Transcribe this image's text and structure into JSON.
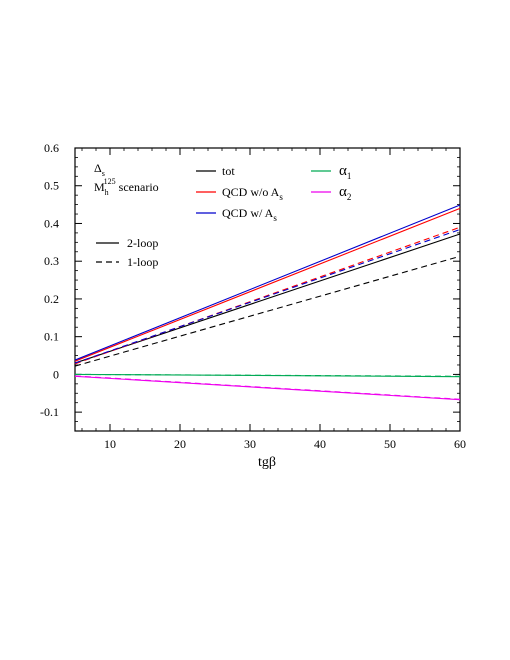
{
  "chart_data": {
    "type": "line",
    "title": "",
    "xlabel": "tgβ",
    "ylabel": "",
    "xlim": [
      5,
      60
    ],
    "ylim": [
      -0.15,
      0.6
    ],
    "xticks": [
      10,
      20,
      30,
      40,
      50,
      60
    ],
    "xtick_labels": [
      "10",
      "20",
      "30",
      "40",
      "50",
      "60"
    ],
    "yticks": [
      -0.1,
      0,
      0.1,
      0.2,
      0.3,
      0.4,
      0.5,
      0.6
    ],
    "ytick_labels": [
      "-0.1",
      "0",
      "0.1",
      "0.2",
      "0.3",
      "0.4",
      "0.5",
      "0.6"
    ],
    "annotations": [
      {
        "text": "Δs",
        "main": "Δ",
        "sub": "s",
        "sup": ""
      },
      {
        "text": "Mh125 scenario",
        "main": "M",
        "sub": "h",
        "sup": "125",
        "rest": " scenario"
      }
    ],
    "legend_colors": [
      {
        "label": "tot",
        "main": "tot",
        "sub": "",
        "color": "#000000"
      },
      {
        "label": "QCD w/o As",
        "main": "QCD w/o A",
        "sub": "s",
        "color": "#ff0000"
      },
      {
        "label": "QCD w/ As",
        "main": "QCD w/  A",
        "sub": "s",
        "color": "#0000cc"
      },
      {
        "label": "α1",
        "main": "α",
        "sub": "1",
        "color": "#00aa55"
      },
      {
        "label": "α2",
        "main": "α",
        "sub": "2",
        "color": "#ee00ee"
      }
    ],
    "legend_styles": [
      {
        "label": "2-loop",
        "dash": "solid"
      },
      {
        "label": "1-loop",
        "dash": "dashed"
      }
    ],
    "series": [
      {
        "component": "tot",
        "loop": "2-loop",
        "color": "#000000",
        "dash": "solid",
        "x": [
          5,
          60
        ],
        "y": [
          0.03,
          0.372
        ]
      },
      {
        "component": "tot",
        "loop": "1-loop",
        "color": "#000000",
        "dash": "dashed",
        "x": [
          5,
          60
        ],
        "y": [
          0.022,
          0.313
        ]
      },
      {
        "component": "QCD w/o As",
        "loop": "2-loop",
        "color": "#ff0000",
        "dash": "solid",
        "x": [
          5,
          60
        ],
        "y": [
          0.035,
          0.44
        ]
      },
      {
        "component": "QCD w/o As",
        "loop": "1-loop",
        "color": "#ff0000",
        "dash": "dashed",
        "x": [
          5,
          60
        ],
        "y": [
          0.028,
          0.39
        ]
      },
      {
        "component": "QCD w/ As",
        "loop": "2-loop",
        "color": "#0000cc",
        "dash": "solid",
        "x": [
          5,
          60
        ],
        "y": [
          0.038,
          0.449
        ]
      },
      {
        "component": "QCD w/ As",
        "loop": "1-loop",
        "color": "#0000cc",
        "dash": "dashed",
        "x": [
          5,
          60
        ],
        "y": [
          0.03,
          0.384
        ]
      },
      {
        "component": "α1",
        "loop": "2-loop",
        "color": "#00aa55",
        "dash": "solid",
        "x": [
          5,
          60
        ],
        "y": [
          0.0,
          -0.006
        ]
      },
      {
        "component": "α1",
        "loop": "1-loop",
        "color": "#00aa55",
        "dash": "dashed",
        "x": [
          5,
          60
        ],
        "y": [
          0.0,
          -0.005
        ]
      },
      {
        "component": "α2",
        "loop": "2-loop",
        "color": "#ee00ee",
        "dash": "solid",
        "x": [
          5,
          60
        ],
        "y": [
          -0.005,
          -0.067
        ]
      },
      {
        "component": "α2",
        "loop": "1-loop",
        "color": "#ee00ee",
        "dash": "dashed",
        "x": [
          5,
          60
        ],
        "y": [
          -0.004,
          -0.066
        ]
      }
    ]
  }
}
